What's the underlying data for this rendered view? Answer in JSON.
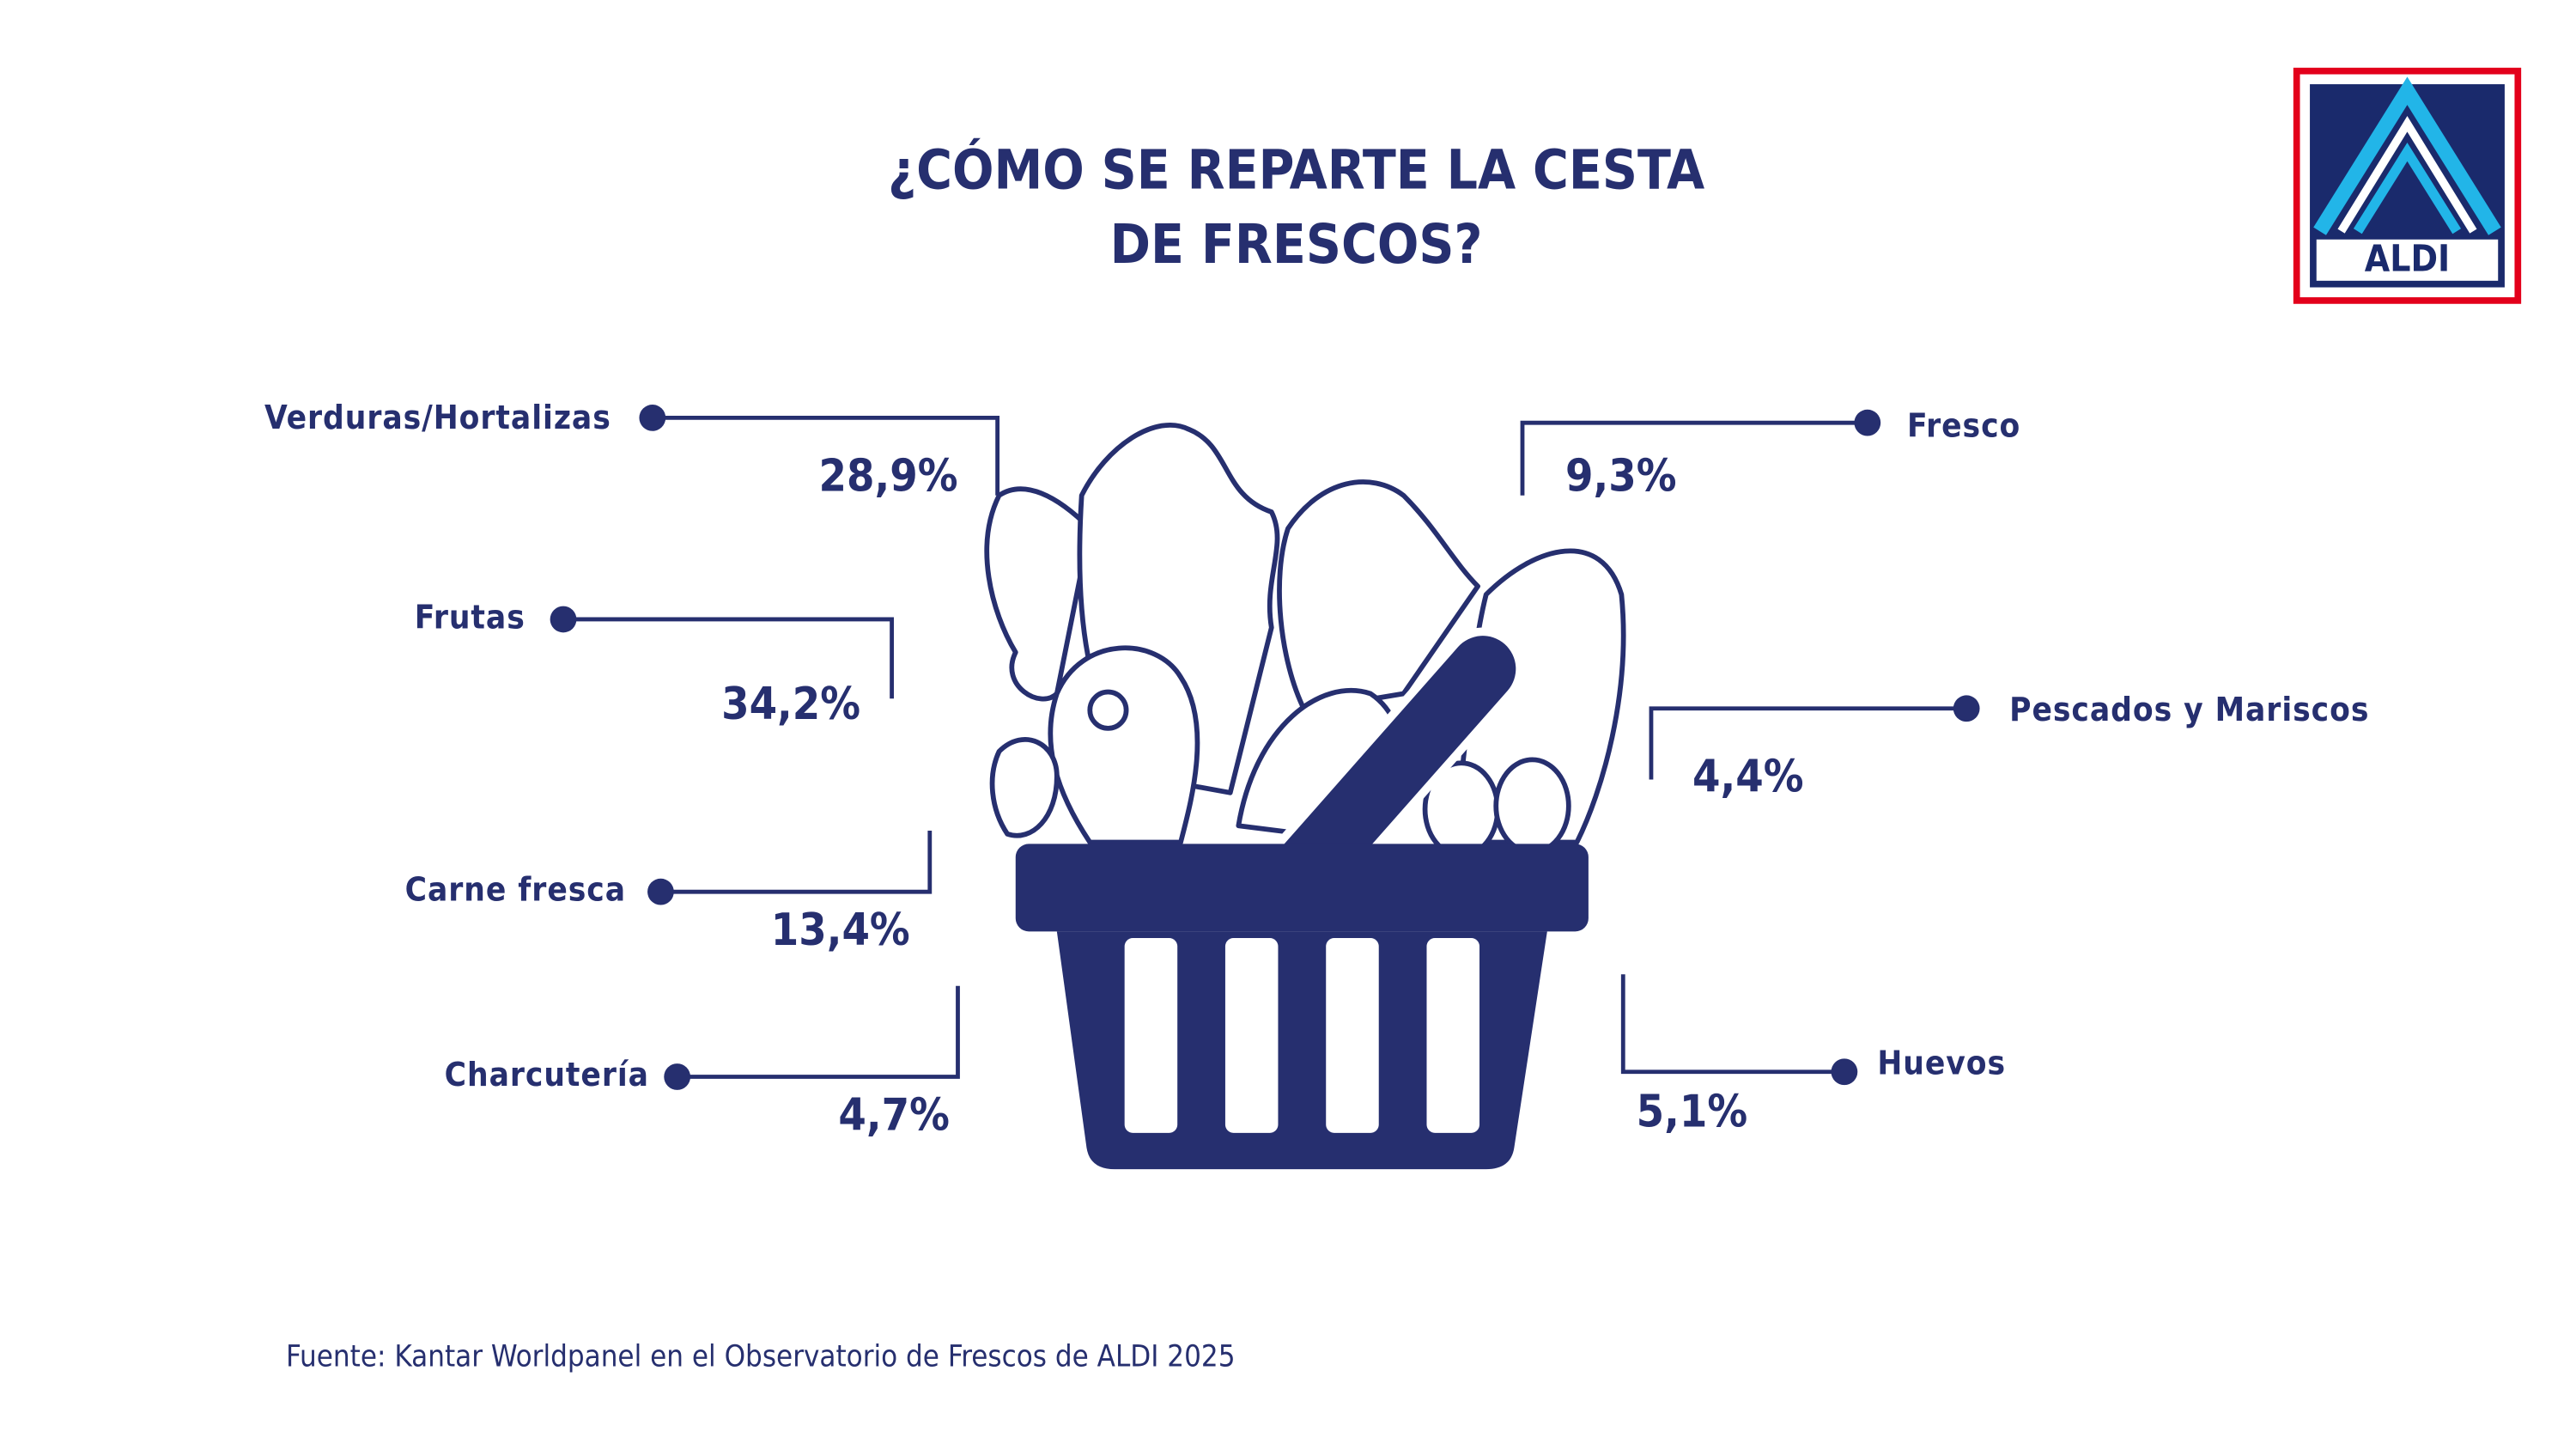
{
  "title": {
    "lines": [
      "¿CÓMO SE REPARTE LA CESTA",
      "DE FRESCOS?"
    ]
  },
  "items": [
    {
      "label": "Verduras/Hortalizas",
      "value": "28,9%"
    },
    {
      "label": "Frutas",
      "value": "34,2%"
    },
    {
      "label": "Carne fresca",
      "value": "13,4%"
    },
    {
      "label": "Charcutería",
      "value": "4,7%"
    },
    {
      "label": "Fresco",
      "value": "9,3%"
    },
    {
      "label": "Pescados y Mariscos",
      "value": "4,4%"
    },
    {
      "label": "Huevos",
      "value": "5,1%"
    }
  ],
  "logo": {
    "text": "ALDI"
  },
  "source": "Fuente: Kantar Worldpanel en el Observatorio de Frescos de ALDI 2025"
}
